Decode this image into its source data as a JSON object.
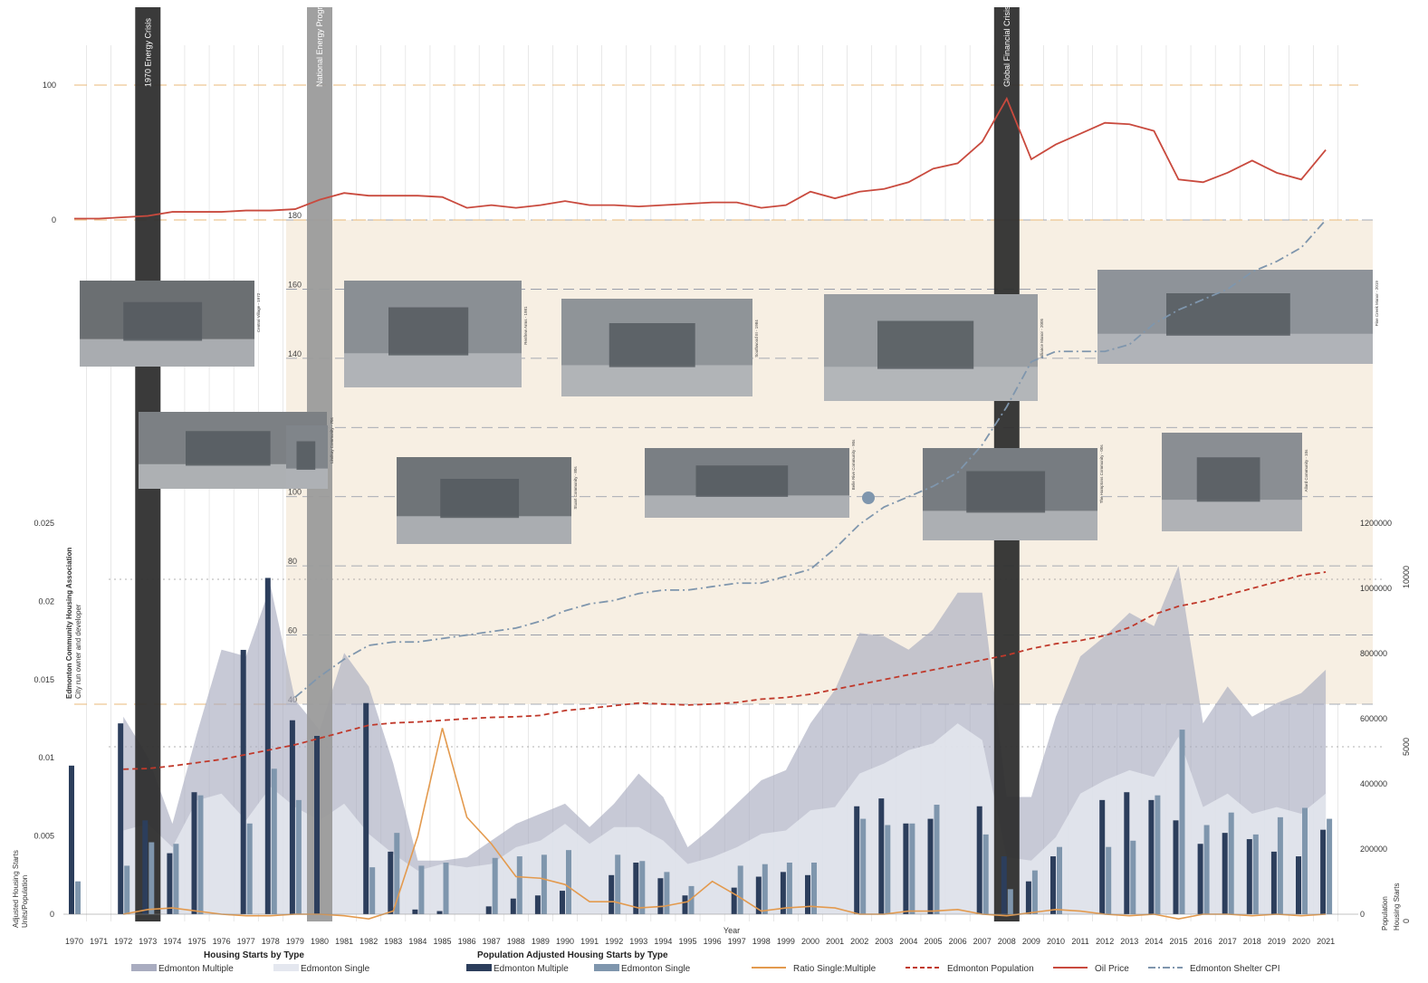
{
  "chart_data": {
    "type": "bar",
    "x_label": "Year",
    "years": [
      1970,
      1971,
      1972,
      1973,
      1974,
      1975,
      1976,
      1977,
      1978,
      1979,
      1980,
      1981,
      1982,
      1983,
      1984,
      1985,
      1986,
      1987,
      1988,
      1989,
      1990,
      1991,
      1992,
      1993,
      1994,
      1995,
      1996,
      1997,
      1998,
      1999,
      2000,
      2001,
      2002,
      2003,
      2004,
      2005,
      2006,
      2007,
      2008,
      2009,
      2010,
      2011,
      2012,
      2013,
      2014,
      2015,
      2016,
      2017,
      2018,
      2019,
      2020,
      2021
    ],
    "year_labels": [
      "1970",
      "1971",
      "1972",
      "1973",
      "1974",
      "1975",
      "1976",
      "1977",
      "1978",
      "1979",
      "1980",
      "1981",
      "1982",
      "1983",
      "1984",
      "1985",
      "1986",
      "1987",
      "1988",
      "1989",
      "1990",
      "1991",
      "1992",
      "1993",
      "1994",
      "1995",
      "1996",
      "1997",
      "1998",
      "1999",
      "2000",
      "2001",
      "2002",
      "2003",
      "2004",
      "2005",
      "2006",
      "2007",
      "2008",
      "2009",
      "2010",
      "2011",
      "2012",
      "2013",
      "2014",
      "2015",
      "2016",
      "2017",
      "2018",
      "2019",
      "2020",
      "2021"
    ],
    "left_axis": {
      "label": "Adjusted Housing Starts",
      "sublabel": "Units/Population",
      "ticks": [
        "0",
        "0.005",
        "0.01",
        "0.015",
        "0.02",
        "0.025"
      ],
      "ylim": [
        0,
        0.025
      ]
    },
    "right_axis_population": {
      "label": "Population",
      "ticks": [
        "0",
        "200000",
        "400000",
        "600000",
        "800000",
        "1000000",
        "1200000"
      ],
      "ylim": [
        0,
        1200000
      ]
    },
    "right_axis_starts": {
      "label": "Housing Starts",
      "ticks": [
        "0",
        "5000",
        "10000"
      ],
      "ylim": [
        0,
        10000
      ]
    },
    "oil_axis": {
      "ticks": [
        "0",
        "100"
      ],
      "ylim": [
        0,
        100
      ]
    },
    "cpi_axis": {
      "ticks": [
        "40",
        "60",
        "80",
        "100",
        "120",
        "140",
        "160",
        "180"
      ],
      "ylim": [
        40,
        180
      ]
    },
    "series": [
      {
        "name": "Edmonton Multiple",
        "group": "Population Adjusted Housing Starts by Type",
        "kind": "bar",
        "color": "#2c3e5c",
        "values": [
          0.0095,
          null,
          0.0122,
          0.006,
          0.0039,
          0.0078,
          null,
          0.0169,
          0.0215,
          0.0124,
          0.0114,
          null,
          0.0135,
          0.004,
          0.0003,
          0.0002,
          null,
          0.0005,
          0.001,
          0.0012,
          0.0015,
          null,
          0.0025,
          0.0033,
          0.0023,
          0.0012,
          null,
          0.0017,
          0.0024,
          0.0027,
          0.0025,
          null,
          0.0069,
          0.0074,
          0.0058,
          0.0061,
          null,
          0.0069,
          0.0037,
          0.0021,
          0.0037,
          null,
          0.0073,
          0.0078,
          0.0073,
          0.006,
          0.0045,
          0.0052,
          0.0048,
          0.004,
          0.0037,
          0.0054
        ]
      },
      {
        "name": "Edmonton Single",
        "group": "Population Adjusted Housing Starts by Type",
        "kind": "bar",
        "color": "#7f96ad",
        "values": [
          0.0021,
          null,
          0.0031,
          0.0046,
          0.0045,
          0.0076,
          null,
          0.0058,
          0.0093,
          0.0073,
          null,
          null,
          0.003,
          0.0052,
          0.0031,
          0.0033,
          null,
          0.0036,
          0.0037,
          0.0038,
          0.0041,
          null,
          0.0038,
          0.0034,
          0.0027,
          0.0018,
          null,
          0.0031,
          0.0032,
          0.0033,
          0.0033,
          null,
          0.0061,
          0.0057,
          0.0058,
          0.007,
          null,
          0.0051,
          0.0016,
          0.0028,
          0.0043,
          null,
          0.0043,
          0.0047,
          0.0076,
          0.0118,
          0.0057,
          0.0065,
          0.0051,
          0.0062,
          0.0068,
          0.0061
        ]
      },
      {
        "name": "Edmonton Multiple",
        "group": "Housing Starts by Type",
        "kind": "area",
        "color": "#a9acc0",
        "values": [
          null,
          null,
          5900,
          4700,
          2700,
          5400,
          7900,
          7700,
          9800,
          6400,
          5500,
          7800,
          6800,
          4500,
          1600,
          1600,
          1700,
          2200,
          2700,
          3000,
          3300,
          2600,
          3300,
          4200,
          3500,
          2000,
          2600,
          3300,
          4000,
          4300,
          5700,
          6700,
          8400,
          8300,
          7900,
          8500,
          9600,
          9600,
          3500,
          3500,
          5900,
          7700,
          8300,
          9000,
          8600,
          10400,
          5700,
          6800,
          5900,
          6300,
          6600,
          7300
        ]
      },
      {
        "name": "Edmonton Single",
        "group": "Housing Starts by Type",
        "kind": "area",
        "color": "#e4e7ef",
        "values": [
          null,
          null,
          2500,
          2700,
          2000,
          3400,
          3600,
          2800,
          3800,
          3200,
          2800,
          3300,
          2400,
          1800,
          1300,
          1500,
          1400,
          1500,
          2000,
          2200,
          2700,
          2100,
          2600,
          2600,
          2200,
          1500,
          1700,
          2000,
          2400,
          2500,
          3100,
          3200,
          4200,
          4500,
          4900,
          5100,
          5700,
          5200,
          1700,
          1600,
          2300,
          3600,
          4000,
          4300,
          4100,
          5300,
          3200,
          3600,
          3000,
          3200,
          3000,
          3600
        ]
      },
      {
        "name": "Ratio Single:Multiple",
        "kind": "line",
        "color": "#e39a4e",
        "values": [
          null,
          null,
          0.0,
          0.0003,
          0.0004,
          0.0002,
          0.0,
          -0.0001,
          -0.0001,
          0.0,
          0.0,
          -0.0001,
          -0.0003,
          0.0002,
          0.005,
          0.0119,
          0.0062,
          0.0045,
          0.0024,
          0.0023,
          0.0019,
          0.0008,
          0.0008,
          0.0004,
          0.0005,
          0.0008,
          0.0021,
          0.0012,
          0.0002,
          0.0004,
          0.0005,
          0.0004,
          0.0,
          0.0,
          0.0002,
          0.0002,
          0.0003,
          0.0,
          -0.0001,
          0.0001,
          0.0003,
          0.0002,
          0.0,
          -0.0001,
          0.0,
          -0.0003,
          0.0,
          0.0,
          -0.0001,
          0.0,
          -0.0001,
          0.0
        ]
      },
      {
        "name": "Edmonton Population",
        "kind": "line",
        "color": "#c0392b",
        "values": [
          null,
          null,
          445000,
          447000,
          455000,
          465000,
          475000,
          490000,
          505000,
          520000,
          540000,
          560000,
          580000,
          587000,
          590000,
          595000,
          600000,
          604000,
          606000,
          610000,
          625000,
          632000,
          640000,
          648000,
          645000,
          642000,
          645000,
          650000,
          660000,
          665000,
          675000,
          690000,
          705000,
          720000,
          735000,
          750000,
          765000,
          780000,
          795000,
          815000,
          830000,
          840000,
          855000,
          880000,
          920000,
          945000,
          960000,
          980000,
          1000000,
          1020000,
          1040000,
          1050000
        ]
      },
      {
        "name": "Oil Price",
        "kind": "line",
        "color": "#c94a3e",
        "values": [
          1,
          1,
          2,
          3,
          6,
          6,
          6,
          7,
          7,
          8,
          15,
          20,
          18,
          18,
          18,
          17,
          9,
          11,
          9,
          11,
          14,
          11,
          11,
          10,
          11,
          12,
          13,
          13,
          9,
          11,
          21,
          16,
          21,
          23,
          28,
          38,
          42,
          58,
          90,
          45,
          56,
          64,
          72,
          71,
          66,
          30,
          28,
          35,
          44,
          35,
          30,
          52
        ]
      },
      {
        "name": "Edmonton Shelter CPI",
        "kind": "line",
        "color": "#7f96ad",
        "values": [
          null,
          null,
          null,
          null,
          null,
          null,
          null,
          null,
          null,
          42,
          48,
          53,
          57,
          58,
          58,
          59,
          60,
          61,
          62,
          64,
          67,
          69,
          70,
          72,
          73,
          73,
          74,
          75,
          75,
          77,
          79,
          85,
          92,
          97,
          100,
          103,
          107,
          115,
          126,
          139,
          142,
          142,
          142,
          144,
          150,
          154,
          157,
          160,
          165,
          168,
          172,
          180
        ]
      }
    ],
    "events": [
      {
        "label": "1970 Energy Crisis",
        "year": 1973
      },
      {
        "label": "National Energy Program",
        "year": 1980
      },
      {
        "label": "Global Financial Crisis",
        "year": 2008
      }
    ],
    "side_annotation": {
      "title": "Edmonton Community Housing Association",
      "subtitle": "City run owner and developer"
    },
    "photos": [
      {
        "caption": "Central Village - 1972",
        "tone": "#6b6f72"
      },
      {
        "caption": "",
        "tone": "#7c8084"
      },
      {
        "caption": "Lindsay Community - 70s",
        "tone": "#80858a"
      },
      {
        "caption": "Renfrew Arms - 1981",
        "tone": "#8a8f94"
      },
      {
        "caption": "Stuart Community - 80s",
        "tone": "#6f7478"
      },
      {
        "caption": "Southwood III - 1984",
        "tone": "#8f9498"
      },
      {
        "caption": "Belle Rive Community - 90s",
        "tone": "#7a7f84"
      },
      {
        "caption": "Alliance Manor - 2005",
        "tone": "#9a9ea2"
      },
      {
        "caption": "The Hamptons Community - 00s",
        "tone": "#777c81"
      },
      {
        "caption": "Pine Creek Manor - 2019",
        "tone": "#8e9399"
      },
      {
        "caption": "Allard Community - 10s",
        "tone": "#8a8e93"
      }
    ],
    "legend": {
      "housing_starts_title": "Housing Starts by Type",
      "adjusted_title": "Population Adjusted Housing Starts by Type",
      "items": [
        {
          "label": "Edmonton Multiple",
          "kind": "area",
          "color": "#a9acc0"
        },
        {
          "label": "Edmonton Single",
          "kind": "area",
          "color": "#e4e7ef"
        },
        {
          "label": "Edmonton Multiple",
          "kind": "bar",
          "color": "#2c3e5c"
        },
        {
          "label": "Edmonton Single",
          "kind": "bar",
          "color": "#7f96ad"
        },
        {
          "label": "Ratio Single:Multiple",
          "kind": "line",
          "color": "#e39a4e"
        },
        {
          "label": "Edmonton Population",
          "kind": "dashed",
          "color": "#c0392b"
        },
        {
          "label": "Oil Price",
          "kind": "line",
          "color": "#c94a3e"
        },
        {
          "label": "Edmonton Shelter CPI",
          "kind": "dashdot",
          "color": "#7f96ad"
        }
      ]
    },
    "colors": {
      "cpi_band": "#f7efe3",
      "event_dark": "#2f2f2f",
      "event_light": "#9b9b9b",
      "oil_ref_line": "#e8b878",
      "grid": "#d9d9d9"
    }
  }
}
